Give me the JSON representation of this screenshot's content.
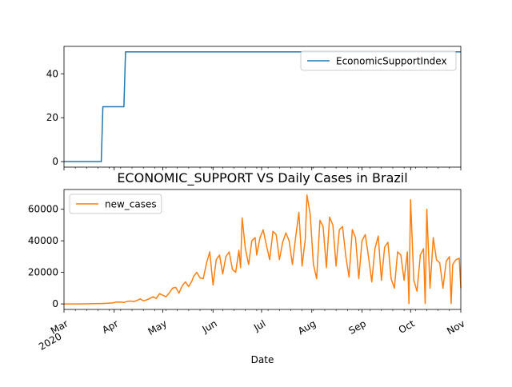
{
  "chart_data": [
    {
      "type": "line",
      "title": "",
      "xlabel": "",
      "ylabel": "",
      "x_range": [
        "2020-03-01",
        "2020-11-01"
      ],
      "ylim": [
        -2.5,
        52.5
      ],
      "y_ticks": [
        0,
        20,
        40
      ],
      "grid": false,
      "legend": "top-right",
      "series": [
        {
          "name": "EconomicSupportIndex",
          "color": "#1f77b4",
          "x": [
            "2020-03-01",
            "2020-03-24",
            "2020-03-25",
            "2020-04-07",
            "2020-04-08",
            "2020-11-01"
          ],
          "y": [
            0,
            0,
            25,
            25,
            50,
            50
          ]
        }
      ]
    },
    {
      "type": "line",
      "title": "ECONOMIC_SUPPORT VS Daily Cases in Brazil",
      "xlabel": "Date",
      "ylabel": "",
      "x_range": [
        "2020-03-01",
        "2020-11-01"
      ],
      "ylim": [
        -3500,
        72500
      ],
      "y_ticks": [
        0,
        20000,
        40000,
        60000
      ],
      "x_ticks": [
        {
          "date": "2020-03-01",
          "label": "Mar",
          "sublabel": "2020"
        },
        {
          "date": "2020-04-01",
          "label": "Apr"
        },
        {
          "date": "2020-05-01",
          "label": "May"
        },
        {
          "date": "2020-06-01",
          "label": "Jun"
        },
        {
          "date": "2020-07-01",
          "label": "Jul"
        },
        {
          "date": "2020-08-01",
          "label": "Aug"
        },
        {
          "date": "2020-09-01",
          "label": "Sep"
        },
        {
          "date": "2020-10-01",
          "label": "Oct"
        },
        {
          "date": "2020-11-01",
          "label": "Nov"
        }
      ],
      "grid": false,
      "legend": "top-left",
      "series": [
        {
          "name": "new_cases",
          "color": "#ff7f0e",
          "points": [
            [
              "2020-03-01",
              0
            ],
            [
              "2020-03-10",
              10
            ],
            [
              "2020-03-20",
              150
            ],
            [
              "2020-03-25",
              250
            ],
            [
              "2020-03-28",
              400
            ],
            [
              "2020-03-31",
              600
            ],
            [
              "2020-04-02",
              1100
            ],
            [
              "2020-04-05",
              1200
            ],
            [
              "2020-04-07",
              900
            ],
            [
              "2020-04-09",
              1600
            ],
            [
              "2020-04-11",
              1800
            ],
            [
              "2020-04-13",
              1500
            ],
            [
              "2020-04-15",
              2200
            ],
            [
              "2020-04-17",
              3200
            ],
            [
              "2020-04-19",
              2000
            ],
            [
              "2020-04-21",
              2500
            ],
            [
              "2020-04-23",
              3500
            ],
            [
              "2020-04-25",
              4500
            ],
            [
              "2020-04-27",
              3500
            ],
            [
              "2020-04-29",
              6500
            ],
            [
              "2020-05-01",
              5500
            ],
            [
              "2020-05-03",
              4500
            ],
            [
              "2020-05-05",
              7000
            ],
            [
              "2020-05-07",
              10000
            ],
            [
              "2020-05-09",
              10500
            ],
            [
              "2020-05-11",
              6800
            ],
            [
              "2020-05-13",
              11500
            ],
            [
              "2020-05-15",
              14000
            ],
            [
              "2020-05-17",
              11000
            ],
            [
              "2020-05-19",
              14500
            ],
            [
              "2020-05-20",
              17500
            ],
            [
              "2020-05-22",
              20000
            ],
            [
              "2020-05-24",
              16500
            ],
            [
              "2020-05-26",
              16000
            ],
            [
              "2020-05-28",
              26000
            ],
            [
              "2020-05-30",
              33000
            ],
            [
              "2020-06-01",
              12000
            ],
            [
              "2020-06-03",
              28000
            ],
            [
              "2020-06-05",
              31000
            ],
            [
              "2020-06-07",
              19000
            ],
            [
              "2020-06-09",
              30000
            ],
            [
              "2020-06-11",
              33000
            ],
            [
              "2020-06-13",
              22000
            ],
            [
              "2020-06-15",
              20000
            ],
            [
              "2020-06-17",
              34000
            ],
            [
              "2020-06-18",
              23000
            ],
            [
              "2020-06-19",
              54500
            ],
            [
              "2020-06-21",
              35000
            ],
            [
              "2020-06-23",
              25000
            ],
            [
              "2020-06-25",
              40000
            ],
            [
              "2020-06-27",
              42000
            ],
            [
              "2020-06-28",
              31000
            ],
            [
              "2020-06-30",
              42000
            ],
            [
              "2020-07-02",
              47000
            ],
            [
              "2020-07-04",
              37000
            ],
            [
              "2020-07-06",
              28000
            ],
            [
              "2020-07-08",
              46000
            ],
            [
              "2020-07-10",
              44000
            ],
            [
              "2020-07-12",
              28000
            ],
            [
              "2020-07-14",
              39000
            ],
            [
              "2020-07-16",
              45000
            ],
            [
              "2020-07-18",
              40000
            ],
            [
              "2020-07-20",
              25000
            ],
            [
              "2020-07-22",
              42000
            ],
            [
              "2020-07-24",
              58000
            ],
            [
              "2020-07-26",
              24000
            ],
            [
              "2020-07-28",
              41000
            ],
            [
              "2020-07-29",
              69000
            ],
            [
              "2020-07-31",
              57000
            ],
            [
              "2020-08-02",
              25000
            ],
            [
              "2020-08-04",
              16000
            ],
            [
              "2020-08-06",
              53000
            ],
            [
              "2020-08-08",
              49000
            ],
            [
              "2020-08-10",
              23000
            ],
            [
              "2020-08-12",
              55000
            ],
            [
              "2020-08-14",
              50000
            ],
            [
              "2020-08-16",
              24000
            ],
            [
              "2020-08-18",
              47000
            ],
            [
              "2020-08-20",
              49000
            ],
            [
              "2020-08-22",
              30000
            ],
            [
              "2020-08-24",
              17000
            ],
            [
              "2020-08-26",
              47000
            ],
            [
              "2020-08-28",
              42000
            ],
            [
              "2020-08-30",
              16000
            ],
            [
              "2020-09-01",
              40000
            ],
            [
              "2020-09-03",
              44000
            ],
            [
              "2020-09-05",
              30000
            ],
            [
              "2020-09-07",
              14000
            ],
            [
              "2020-09-09",
              35000
            ],
            [
              "2020-09-11",
              43000
            ],
            [
              "2020-09-13",
              15000
            ],
            [
              "2020-09-15",
              36000
            ],
            [
              "2020-09-17",
              39000
            ],
            [
              "2020-09-19",
              16000
            ],
            [
              "2020-09-21",
              10000
            ],
            [
              "2020-09-23",
              33000
            ],
            [
              "2020-09-25",
              31000
            ],
            [
              "2020-09-27",
              15000
            ],
            [
              "2020-09-29",
              33000
            ],
            [
              "2020-09-30",
              200
            ],
            [
              "2020-10-01",
              66000
            ],
            [
              "2020-10-03",
              15000
            ],
            [
              "2020-10-05",
              8000
            ],
            [
              "2020-10-07",
              31000
            ],
            [
              "2020-10-09",
              35000
            ],
            [
              "2020-10-10",
              200
            ],
            [
              "2020-10-11",
              60000
            ],
            [
              "2020-10-13",
              10000
            ],
            [
              "2020-10-15",
              42000
            ],
            [
              "2020-10-17",
              28000
            ],
            [
              "2020-10-19",
              26000
            ],
            [
              "2020-10-21",
              10000
            ],
            [
              "2020-10-23",
              27000
            ],
            [
              "2020-10-25",
              30000
            ],
            [
              "2020-10-26",
              200
            ],
            [
              "2020-10-27",
              25000
            ],
            [
              "2020-10-29",
              28000
            ],
            [
              "2020-10-31",
              29000
            ],
            [
              "2020-11-01",
              10000
            ]
          ]
        }
      ]
    }
  ]
}
